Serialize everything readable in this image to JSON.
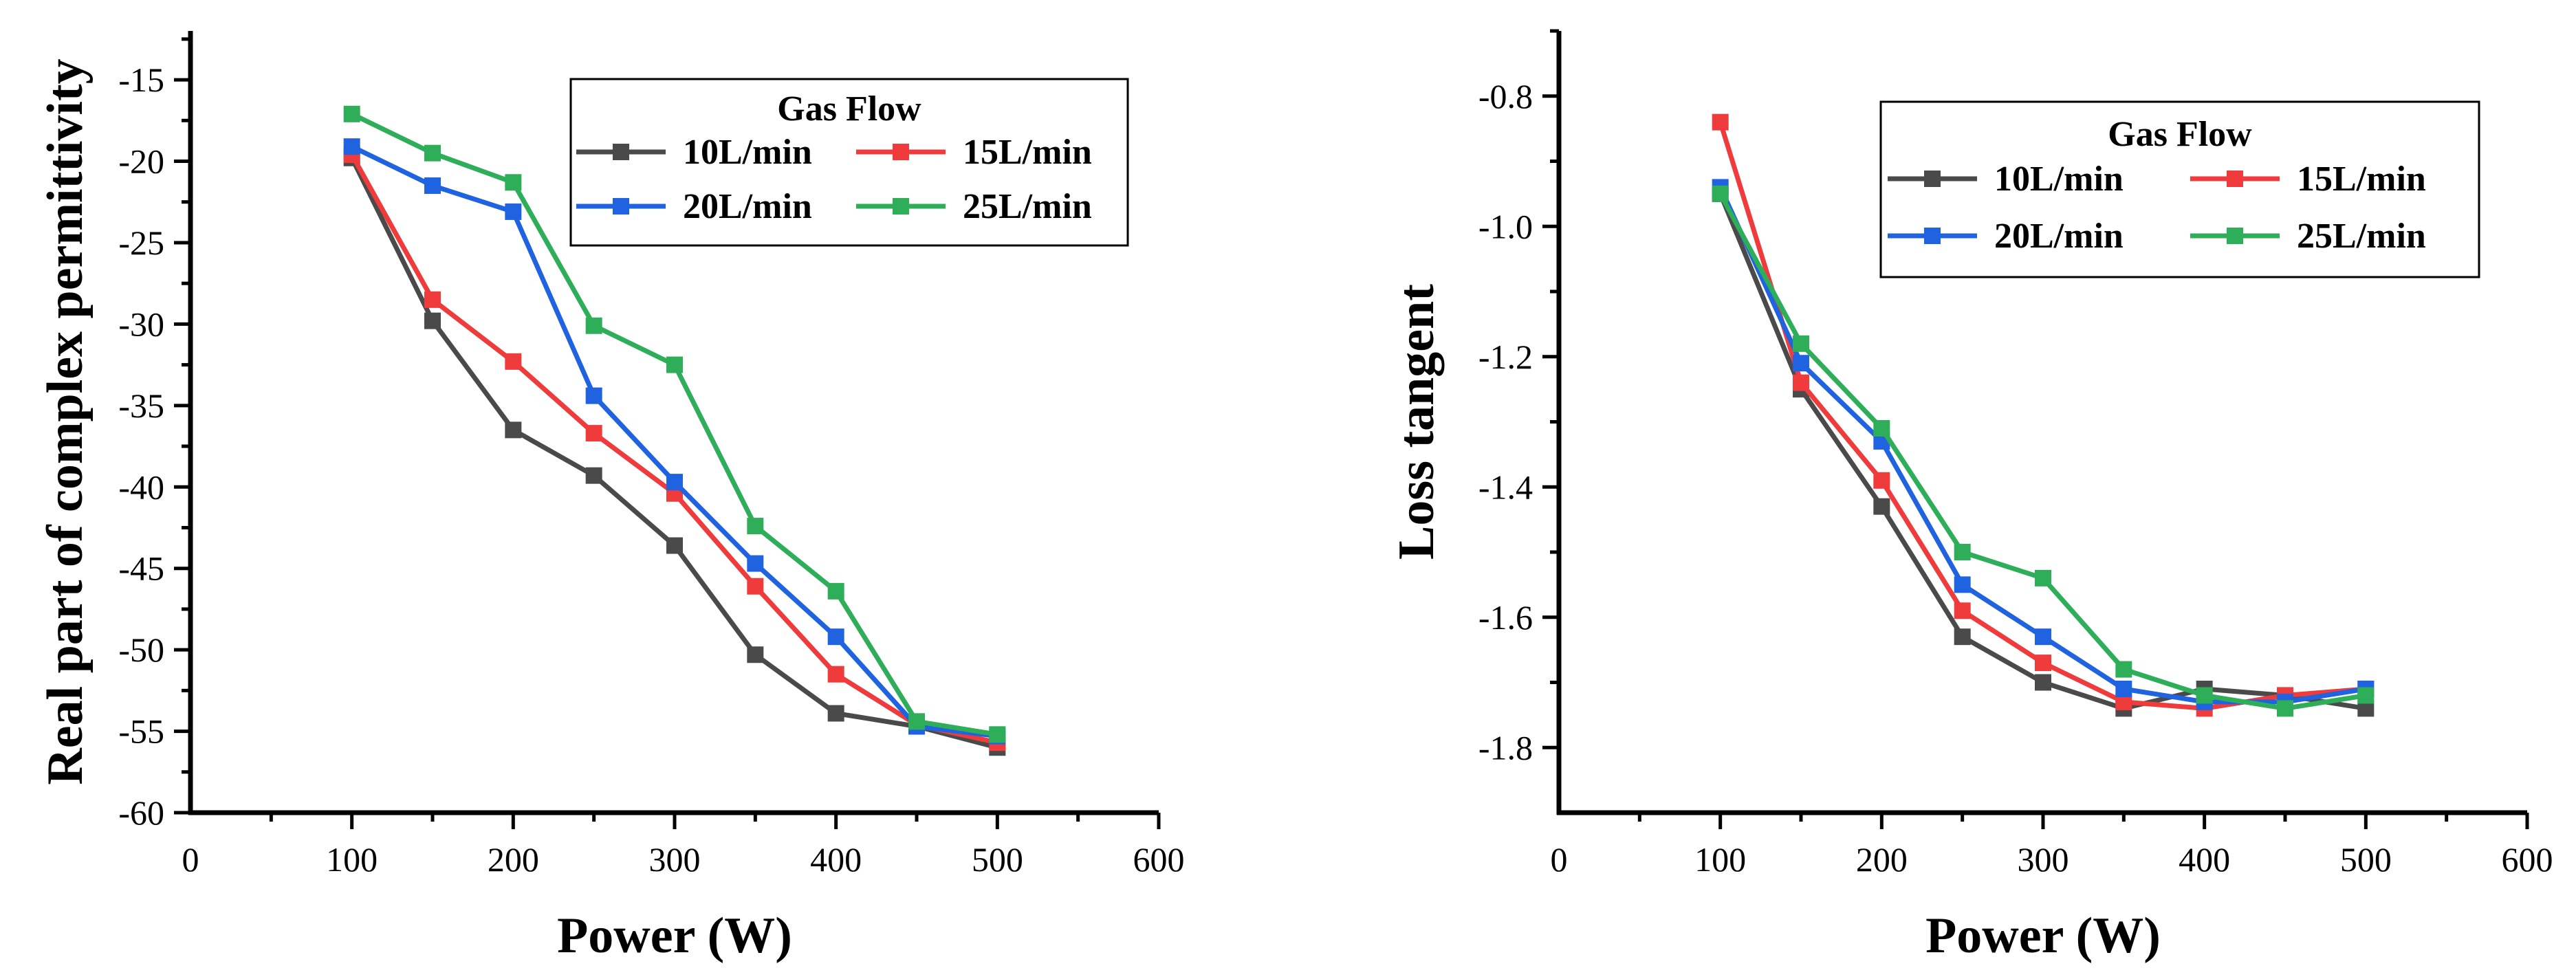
{
  "chart_data": [
    {
      "type": "line",
      "title": "",
      "xlabel": "Power (W)",
      "ylabel": "Real part of complex permittivity",
      "xlim": [
        0,
        600
      ],
      "ylim": [
        -60,
        -12
      ],
      "xticks": [
        0,
        100,
        200,
        300,
        400,
        500,
        600
      ],
      "xtick_labels": [
        "0",
        "100",
        "200",
        "300",
        "400",
        "500",
        "600"
      ],
      "yticks": [
        -60,
        -55,
        -50,
        -45,
        -40,
        -35,
        -30,
        -25,
        -20,
        -15
      ],
      "ytick_labels": [
        "-60",
        "-55",
        "-50",
        "-45",
        "-40",
        "-35",
        "-30",
        "-25",
        "-20",
        "-15"
      ],
      "legend": {
        "title": "Gas Flow",
        "placement": "top-right",
        "columns": 2
      },
      "x": [
        100,
        150,
        200,
        250,
        300,
        350,
        400,
        450,
        500
      ],
      "series": [
        {
          "name": "10L/min",
          "color": "#4a4a4a",
          "values": [
            -19.8,
            -29.8,
            -36.5,
            -39.3,
            -43.6,
            -50.3,
            -53.9,
            -54.7,
            -56.0
          ]
        },
        {
          "name": "15L/min",
          "color": "#ef3b3b",
          "values": [
            -19.6,
            -28.5,
            -32.3,
            -36.7,
            -40.4,
            -46.1,
            -51.5,
            -54.6,
            -55.7
          ]
        },
        {
          "name": "20L/min",
          "color": "#1f63e0",
          "values": [
            -19.1,
            -21.5,
            -23.1,
            -34.4,
            -39.7,
            -44.7,
            -49.2,
            -54.7,
            -55.3
          ]
        },
        {
          "name": "25L/min",
          "color": "#2fae5a",
          "values": [
            -17.1,
            -19.5,
            -21.3,
            -30.1,
            -32.5,
            -42.4,
            -46.4,
            -54.4,
            -55.2
          ]
        }
      ]
    },
    {
      "type": "line",
      "title": "",
      "xlabel": "Power (W)",
      "ylabel": "Loss tangent",
      "xlim": [
        0,
        600
      ],
      "ylim": [
        -1.9,
        -0.7
      ],
      "xticks": [
        0,
        100,
        200,
        300,
        400,
        500,
        600
      ],
      "xtick_labels": [
        "0",
        "100",
        "200",
        "300",
        "400",
        "500",
        "600"
      ],
      "yticks": [
        -1.8,
        -1.6,
        -1.4,
        -1.2,
        -1.0,
        -0.8
      ],
      "ytick_labels": [
        "-1.8",
        "-1.6",
        "-1.4",
        "-1.2",
        "-1.0",
        "-0.8"
      ],
      "legend": {
        "title": "Gas Flow",
        "placement": "top-right",
        "columns": 2
      },
      "x": [
        100,
        150,
        200,
        250,
        300,
        350,
        400,
        450,
        500
      ],
      "series": [
        {
          "name": "10L/min",
          "color": "#4a4a4a",
          "values": [
            -0.95,
            -1.25,
            -1.43,
            -1.63,
            -1.7,
            -1.74,
            -1.71,
            -1.72,
            -1.74
          ]
        },
        {
          "name": "15L/min",
          "color": "#ef3b3b",
          "values": [
            -0.84,
            -1.24,
            -1.39,
            -1.59,
            -1.67,
            -1.73,
            -1.74,
            -1.72,
            -1.71
          ]
        },
        {
          "name": "20L/min",
          "color": "#1f63e0",
          "values": [
            -0.94,
            -1.21,
            -1.33,
            -1.55,
            -1.63,
            -1.71,
            -1.73,
            -1.73,
            -1.71
          ]
        },
        {
          "name": "25L/min",
          "color": "#2fae5a",
          "values": [
            -0.95,
            -1.18,
            -1.31,
            -1.5,
            -1.54,
            -1.68,
            -1.72,
            -1.74,
            -1.72
          ]
        }
      ]
    }
  ]
}
